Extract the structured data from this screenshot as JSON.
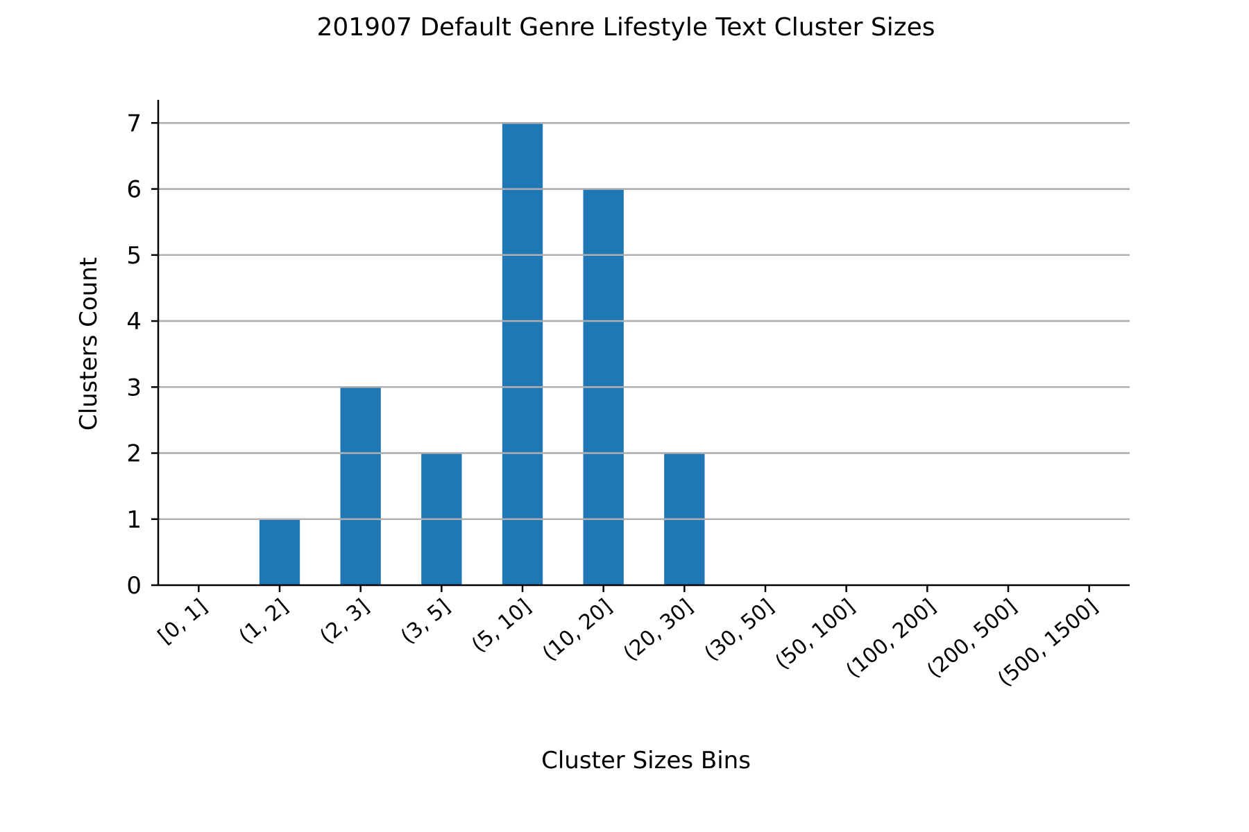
{
  "chart_data": {
    "type": "bar",
    "title": "201907 Default Genre Lifestyle Text Cluster Sizes",
    "xlabel": "Cluster Sizes Bins",
    "ylabel": "Clusters Count",
    "categories": [
      "[0, 1]",
      "(1, 2]",
      "(2, 3]",
      "(3, 5]",
      "(5, 10]",
      "(10, 20]",
      "(20, 30]",
      "(30, 50]",
      "(50, 100]",
      "(100, 200]",
      "(200, 500]",
      "(500, 1500]"
    ],
    "values": [
      0,
      1,
      3,
      2,
      7,
      6,
      2,
      0,
      0,
      0,
      0,
      0
    ],
    "ylim": [
      0,
      7.35
    ],
    "yticks": [
      0,
      1,
      2,
      3,
      4,
      5,
      6,
      7
    ],
    "grid": "horizontal",
    "bar_color": "#1f77b4",
    "grid_color": "#b0b0b0"
  }
}
